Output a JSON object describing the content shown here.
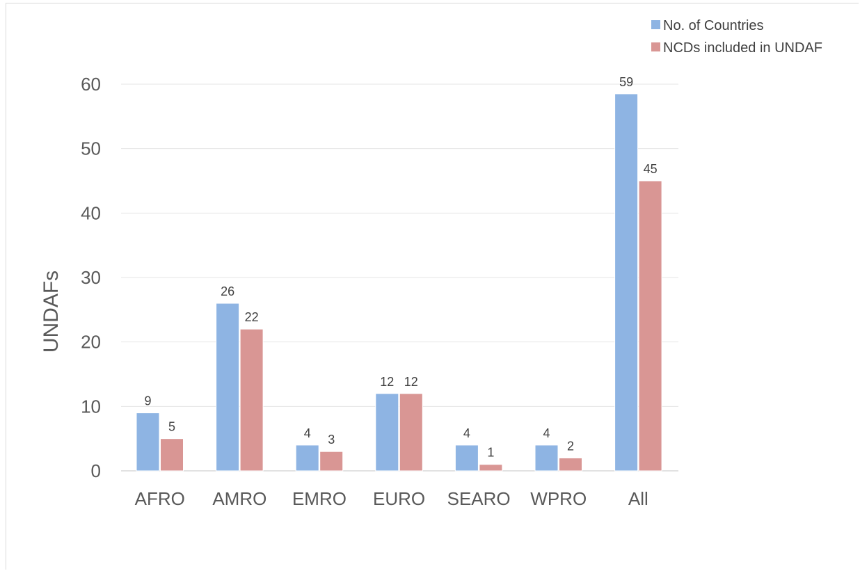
{
  "chart_data": {
    "type": "bar",
    "categories": [
      "AFRO",
      "AMRO",
      "EMRO",
      "EURO",
      "SEARO",
      "WPRO",
      "All"
    ],
    "series": [
      {
        "name": "No. of Countries",
        "color": "#8eb4e3",
        "values": [
          9,
          26,
          4,
          12,
          4,
          4,
          59
        ],
        "plotted": [
          9,
          26,
          4,
          12,
          4,
          4,
          58.5
        ]
      },
      {
        "name": "NCDs included in UNDAF",
        "color": "#d99694",
        "values": [
          5,
          22,
          3,
          12,
          1,
          2,
          45
        ]
      }
    ],
    "title": "",
    "xlabel": "",
    "ylabel": "UNDAFs",
    "ylim": [
      0,
      60
    ],
    "yticks": [
      0,
      10,
      20,
      30,
      40,
      50,
      60
    ],
    "grid": true,
    "legend": "top-right"
  }
}
